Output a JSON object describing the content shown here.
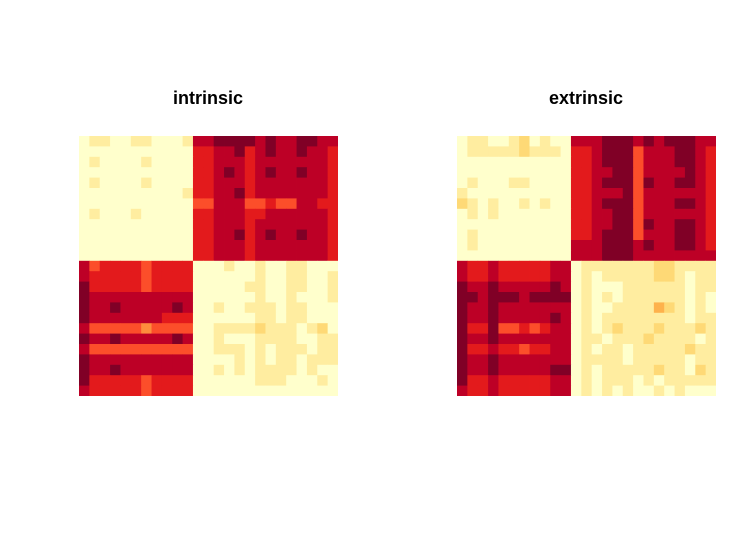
{
  "chart_data": [
    {
      "type": "heatmap",
      "title": "intrinsic",
      "xlabel": "",
      "ylabel": "",
      "axes_shown": false,
      "legend": "none",
      "color_scale": [
        "#ffffcc",
        "#ffeda0",
        "#fed976",
        "#feb24c",
        "#fd8d3c",
        "#fc4e2a",
        "#e31a1c",
        "#bd0026",
        "#800026"
      ],
      "levels": [
        [
          0,
          1,
          1,
          0,
          0,
          1,
          1,
          0,
          0,
          0,
          1,
          7,
          7,
          8,
          8,
          8,
          8,
          7,
          8,
          7,
          7,
          8,
          8,
          7,
          7
        ],
        [
          0,
          0,
          0,
          0,
          0,
          0,
          0,
          0,
          0,
          0,
          0,
          6,
          6,
          7,
          7,
          8,
          6,
          7,
          8,
          7,
          7,
          8,
          7,
          7,
          6
        ],
        [
          0,
          1,
          0,
          0,
          0,
          0,
          1,
          0,
          0,
          0,
          0,
          6,
          6,
          7,
          7,
          7,
          6,
          7,
          7,
          7,
          7,
          7,
          7,
          7,
          6
        ],
        [
          0,
          0,
          0,
          0,
          0,
          0,
          0,
          0,
          0,
          0,
          0,
          6,
          6,
          7,
          8,
          7,
          6,
          7,
          8,
          7,
          7,
          8,
          7,
          7,
          6
        ],
        [
          0,
          1,
          0,
          0,
          0,
          0,
          1,
          0,
          0,
          0,
          0,
          6,
          6,
          7,
          7,
          7,
          6,
          7,
          7,
          7,
          7,
          7,
          7,
          7,
          6
        ],
        [
          0,
          0,
          0,
          0,
          0,
          0,
          0,
          0,
          0,
          0,
          1,
          6,
          6,
          7,
          7,
          8,
          6,
          7,
          7,
          7,
          7,
          7,
          7,
          7,
          6
        ],
        [
          0,
          0,
          0,
          0,
          0,
          0,
          0,
          0,
          0,
          0,
          0,
          5,
          5,
          7,
          7,
          7,
          5,
          5,
          6,
          5,
          5,
          7,
          7,
          6,
          6
        ],
        [
          0,
          1,
          0,
          0,
          0,
          1,
          0,
          0,
          0,
          0,
          0,
          6,
          6,
          7,
          7,
          7,
          6,
          6,
          7,
          7,
          7,
          7,
          7,
          7,
          6
        ],
        [
          0,
          0,
          0,
          0,
          0,
          0,
          0,
          0,
          0,
          0,
          0,
          6,
          6,
          7,
          7,
          7,
          6,
          7,
          7,
          7,
          7,
          7,
          7,
          7,
          6
        ],
        [
          0,
          0,
          0,
          0,
          0,
          0,
          0,
          0,
          0,
          0,
          0,
          6,
          6,
          7,
          7,
          8,
          6,
          7,
          8,
          7,
          7,
          8,
          7,
          7,
          6
        ],
        [
          0,
          0,
          0,
          0,
          0,
          0,
          0,
          0,
          0,
          0,
          0,
          6,
          6,
          7,
          7,
          7,
          6,
          7,
          7,
          7,
          7,
          7,
          7,
          7,
          6
        ],
        [
          0,
          0,
          0,
          0,
          0,
          0,
          0,
          0,
          0,
          0,
          0,
          6,
          6,
          7,
          7,
          7,
          6,
          7,
          7,
          7,
          7,
          7,
          7,
          7,
          6
        ],
        [
          7,
          5,
          6,
          6,
          6,
          6,
          5,
          6,
          6,
          6,
          6,
          0,
          0,
          0,
          1,
          0,
          0,
          1,
          0,
          0,
          1,
          1,
          0,
          0,
          0
        ],
        [
          7,
          6,
          6,
          6,
          6,
          6,
          5,
          6,
          6,
          6,
          6,
          0,
          0,
          0,
          0,
          0,
          0,
          1,
          0,
          0,
          1,
          1,
          0,
          0,
          1
        ],
        [
          8,
          6,
          6,
          6,
          6,
          6,
          5,
          6,
          6,
          6,
          6,
          0,
          0,
          0,
          0,
          0,
          1,
          1,
          0,
          0,
          1,
          1,
          0,
          0,
          1
        ],
        [
          8,
          7,
          7,
          7,
          7,
          7,
          7,
          7,
          7,
          7,
          7,
          0,
          0,
          0,
          0,
          0,
          0,
          1,
          0,
          0,
          1,
          0,
          0,
          0,
          1
        ],
        [
          8,
          7,
          7,
          8,
          7,
          7,
          7,
          7,
          7,
          8,
          7,
          0,
          0,
          1,
          0,
          0,
          1,
          1,
          1,
          0,
          1,
          1,
          0,
          0,
          0
        ],
        [
          8,
          7,
          7,
          7,
          7,
          7,
          7,
          7,
          6,
          6,
          6,
          0,
          0,
          0,
          0,
          0,
          0,
          1,
          1,
          0,
          1,
          1,
          0,
          0,
          0
        ],
        [
          7,
          5,
          5,
          5,
          5,
          5,
          4,
          5,
          5,
          5,
          5,
          0,
          0,
          1,
          1,
          1,
          1,
          2,
          1,
          1,
          1,
          0,
          1,
          2,
          0
        ],
        [
          8,
          7,
          7,
          8,
          7,
          7,
          7,
          7,
          7,
          8,
          7,
          0,
          0,
          1,
          0,
          0,
          0,
          1,
          1,
          1,
          1,
          0,
          0,
          1,
          1
        ],
        [
          7,
          5,
          5,
          5,
          5,
          5,
          5,
          5,
          5,
          5,
          5,
          0,
          0,
          1,
          1,
          1,
          0,
          1,
          0,
          1,
          1,
          1,
          0,
          1,
          1
        ],
        [
          8,
          7,
          7,
          7,
          7,
          7,
          7,
          7,
          7,
          7,
          7,
          0,
          0,
          0,
          0,
          1,
          0,
          1,
          0,
          1,
          1,
          0,
          1,
          1,
          1
        ],
        [
          8,
          7,
          7,
          8,
          7,
          7,
          7,
          7,
          7,
          7,
          7,
          0,
          0,
          1,
          0,
          1,
          0,
          1,
          1,
          1,
          1,
          0,
          1,
          0,
          0
        ],
        [
          8,
          6,
          6,
          6,
          6,
          6,
          5,
          6,
          6,
          6,
          6,
          0,
          0,
          0,
          0,
          0,
          0,
          1,
          1,
          1,
          0,
          0,
          0,
          1,
          0
        ],
        [
          7,
          6,
          6,
          6,
          6,
          6,
          5,
          6,
          6,
          6,
          6,
          0,
          0,
          0,
          0,
          0,
          0,
          0,
          0,
          0,
          0,
          0,
          0,
          0,
          0
        ]
      ]
    },
    {
      "type": "heatmap",
      "title": "extrinsic",
      "xlabel": "",
      "ylabel": "",
      "axes_shown": false,
      "legend": "none",
      "color_scale": [
        "#ffffcc",
        "#ffeda0",
        "#fed976",
        "#feb24c",
        "#fd8d3c",
        "#fc4e2a",
        "#e31a1c",
        "#bd0026",
        "#800026"
      ],
      "levels": [
        [
          0,
          1,
          1,
          0,
          0,
          1,
          2,
          0,
          1,
          0,
          0,
          7,
          7,
          7,
          8,
          8,
          8,
          7,
          8,
          7,
          8,
          8,
          8,
          7,
          7
        ],
        [
          0,
          1,
          1,
          1,
          1,
          1,
          2,
          1,
          1,
          1,
          0,
          6,
          6,
          7,
          8,
          8,
          8,
          5,
          7,
          7,
          7,
          8,
          8,
          7,
          6
        ],
        [
          0,
          0,
          0,
          0,
          0,
          0,
          0,
          0,
          0,
          0,
          0,
          6,
          6,
          7,
          8,
          8,
          8,
          5,
          7,
          7,
          7,
          8,
          8,
          7,
          6
        ],
        [
          0,
          0,
          0,
          0,
          0,
          0,
          0,
          0,
          0,
          0,
          0,
          6,
          6,
          7,
          7,
          8,
          8,
          5,
          7,
          7,
          7,
          7,
          8,
          7,
          6
        ],
        [
          0,
          1,
          0,
          0,
          0,
          1,
          1,
          0,
          0,
          0,
          0,
          6,
          6,
          7,
          8,
          8,
          8,
          5,
          8,
          7,
          7,
          8,
          8,
          7,
          6
        ],
        [
          1,
          0,
          0,
          0,
          0,
          0,
          0,
          0,
          0,
          0,
          0,
          6,
          6,
          7,
          7,
          7,
          8,
          5,
          7,
          7,
          7,
          7,
          7,
          7,
          6
        ],
        [
          2,
          1,
          0,
          1,
          0,
          0,
          1,
          0,
          1,
          0,
          0,
          6,
          6,
          7,
          8,
          8,
          8,
          5,
          7,
          7,
          7,
          8,
          8,
          7,
          6
        ],
        [
          0,
          1,
          0,
          1,
          0,
          0,
          0,
          0,
          0,
          0,
          0,
          6,
          6,
          7,
          7,
          8,
          8,
          5,
          7,
          7,
          7,
          7,
          7,
          7,
          6
        ],
        [
          0,
          0,
          0,
          0,
          0,
          0,
          0,
          0,
          0,
          0,
          0,
          6,
          6,
          7,
          7,
          8,
          8,
          5,
          8,
          7,
          7,
          8,
          8,
          7,
          6
        ],
        [
          0,
          1,
          0,
          0,
          0,
          0,
          0,
          0,
          0,
          0,
          0,
          6,
          6,
          7,
          8,
          8,
          8,
          5,
          7,
          7,
          7,
          8,
          8,
          7,
          6
        ],
        [
          0,
          1,
          0,
          0,
          0,
          0,
          0,
          0,
          0,
          0,
          0,
          7,
          7,
          7,
          8,
          8,
          8,
          7,
          8,
          7,
          7,
          8,
          8,
          7,
          6
        ],
        [
          0,
          0,
          0,
          0,
          0,
          0,
          0,
          0,
          0,
          0,
          0,
          7,
          7,
          7,
          8,
          8,
          8,
          7,
          7,
          7,
          7,
          7,
          7,
          7,
          7
        ],
        [
          7,
          6,
          6,
          7,
          6,
          6,
          6,
          6,
          6,
          7,
          7,
          0,
          1,
          1,
          1,
          1,
          1,
          1,
          1,
          2,
          2,
          1,
          1,
          1,
          1
        ],
        [
          7,
          6,
          6,
          7,
          6,
          6,
          6,
          6,
          6,
          7,
          7,
          0,
          1,
          0,
          1,
          1,
          1,
          1,
          1,
          2,
          2,
          1,
          0,
          1,
          1
        ],
        [
          8,
          7,
          7,
          8,
          7,
          7,
          7,
          7,
          7,
          8,
          7,
          0,
          1,
          0,
          0,
          0,
          1,
          1,
          1,
          1,
          1,
          1,
          0,
          1,
          1
        ],
        [
          8,
          8,
          7,
          8,
          8,
          8,
          7,
          8,
          8,
          8,
          8,
          0,
          1,
          0,
          1,
          0,
          1,
          1,
          1,
          1,
          1,
          1,
          0,
          1,
          0
        ],
        [
          8,
          7,
          7,
          8,
          7,
          7,
          7,
          7,
          7,
          7,
          7,
          0,
          1,
          0,
          0,
          1,
          1,
          1,
          1,
          3,
          2,
          1,
          0,
          1,
          0
        ],
        [
          8,
          7,
          7,
          8,
          7,
          7,
          7,
          7,
          7,
          8,
          7,
          0,
          1,
          0,
          1,
          1,
          1,
          1,
          1,
          1,
          1,
          1,
          0,
          1,
          1
        ],
        [
          8,
          6,
          6,
          8,
          5,
          5,
          6,
          5,
          6,
          7,
          7,
          0,
          1,
          0,
          1,
          2,
          1,
          1,
          1,
          2,
          1,
          1,
          1,
          2,
          1
        ],
        [
          8,
          7,
          7,
          8,
          7,
          7,
          7,
          7,
          7,
          7,
          7,
          0,
          1,
          1,
          0,
          1,
          1,
          1,
          2,
          1,
          1,
          1,
          1,
          0,
          1
        ],
        [
          8,
          6,
          6,
          7,
          6,
          6,
          5,
          6,
          6,
          7,
          7,
          0,
          1,
          0,
          1,
          1,
          0,
          1,
          1,
          1,
          1,
          1,
          2,
          1,
          1
        ],
        [
          8,
          7,
          7,
          8,
          7,
          7,
          7,
          7,
          7,
          7,
          7,
          0,
          1,
          1,
          1,
          1,
          0,
          1,
          1,
          1,
          1,
          1,
          0,
          1,
          1
        ],
        [
          8,
          7,
          7,
          8,
          7,
          7,
          7,
          7,
          7,
          8,
          8,
          0,
          1,
          0,
          1,
          1,
          1,
          1,
          1,
          2,
          1,
          1,
          0,
          2,
          1
        ],
        [
          8,
          6,
          6,
          7,
          6,
          6,
          6,
          6,
          6,
          7,
          7,
          0,
          1,
          0,
          1,
          1,
          1,
          0,
          1,
          0,
          1,
          1,
          1,
          1,
          1
        ],
        [
          7,
          6,
          6,
          7,
          6,
          6,
          6,
          6,
          6,
          7,
          7,
          0,
          1,
          0,
          1,
          0,
          1,
          0,
          0,
          1,
          0,
          1,
          0,
          0,
          0
        ]
      ]
    }
  ]
}
